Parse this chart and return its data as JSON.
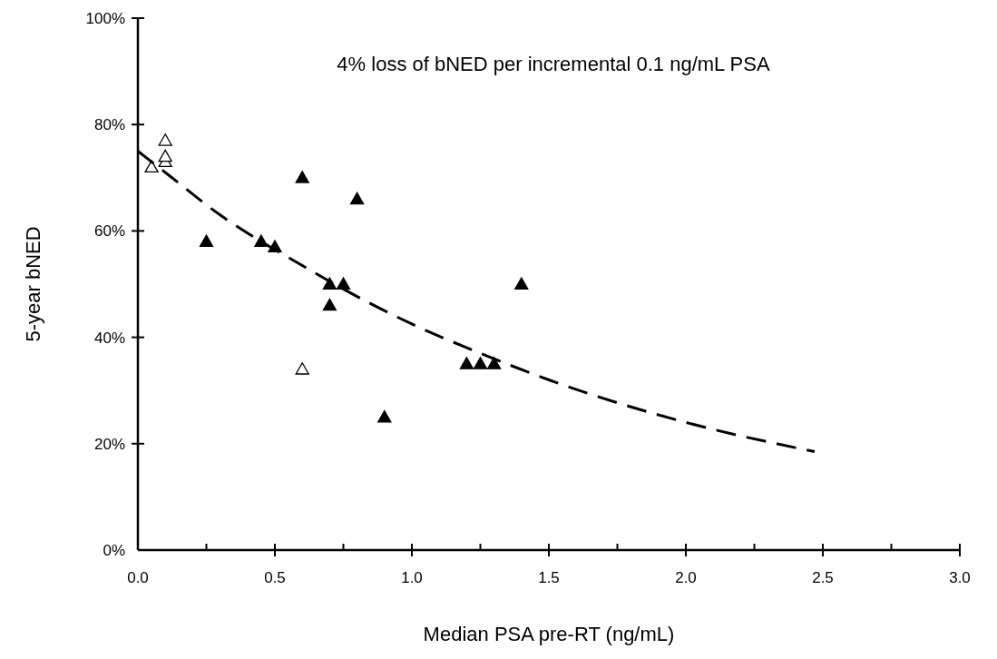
{
  "chart_data": {
    "type": "scatter",
    "xlabel": "Median PSA pre-RT (ng/mL)",
    "ylabel": "5-year bNED",
    "annotations": [
      "4% loss of bNED per incremental 0.1 ng/mL PSA"
    ],
    "xlim": [
      0,
      3
    ],
    "xticks": [
      {
        "value": 0,
        "label": "0.0"
      },
      {
        "value": 0.5,
        "label": "0.5"
      },
      {
        "value": 1,
        "label": "1.0"
      },
      {
        "value": 1.5,
        "label": "1.5"
      },
      {
        "value": 2,
        "label": "2.0"
      },
      {
        "value": 2.5,
        "label": "2.5"
      },
      {
        "value": 3,
        "label": "3.0"
      }
    ],
    "ylim": [
      0,
      100
    ],
    "yticks": [
      {
        "value": 0,
        "label": "0%"
      },
      {
        "value": 20,
        "label": "20%"
      },
      {
        "value": 40,
        "label": "40%"
      },
      {
        "value": 60,
        "label": "60%"
      },
      {
        "value": 80,
        "label": "80%"
      },
      {
        "value": 100,
        "label": "100%"
      }
    ],
    "grid": false,
    "marker": "triangle",
    "series": [
      {
        "color": "#000000",
        "x": [
          0.25,
          0.45,
          0.5,
          0.6,
          0.7,
          0.7,
          0.75,
          0.8,
          0.9,
          1.2,
          1.25,
          1.3,
          1.4
        ],
        "values": [
          58,
          58,
          57,
          70,
          50,
          46,
          50,
          66,
          25,
          35,
          35,
          35,
          50
        ]
      },
      {
        "color": "#ffffff",
        "x": [
          0.05,
          0.1,
          0.1,
          0.1,
          0.6
        ],
        "values": [
          72,
          73,
          74,
          77,
          34
        ]
      },
      {
        "type": "line",
        "line_style": "dashed",
        "marker": "none",
        "color": "#000000",
        "x": [
          0,
          0.1,
          0.3,
          0.45,
          0.6,
          0.7,
          1.0,
          1.25,
          1.5,
          2.0,
          2.47
        ],
        "values": [
          75,
          71,
          63,
          58,
          53.5,
          50.5,
          42.5,
          37,
          32,
          24,
          18.5
        ]
      }
    ]
  }
}
